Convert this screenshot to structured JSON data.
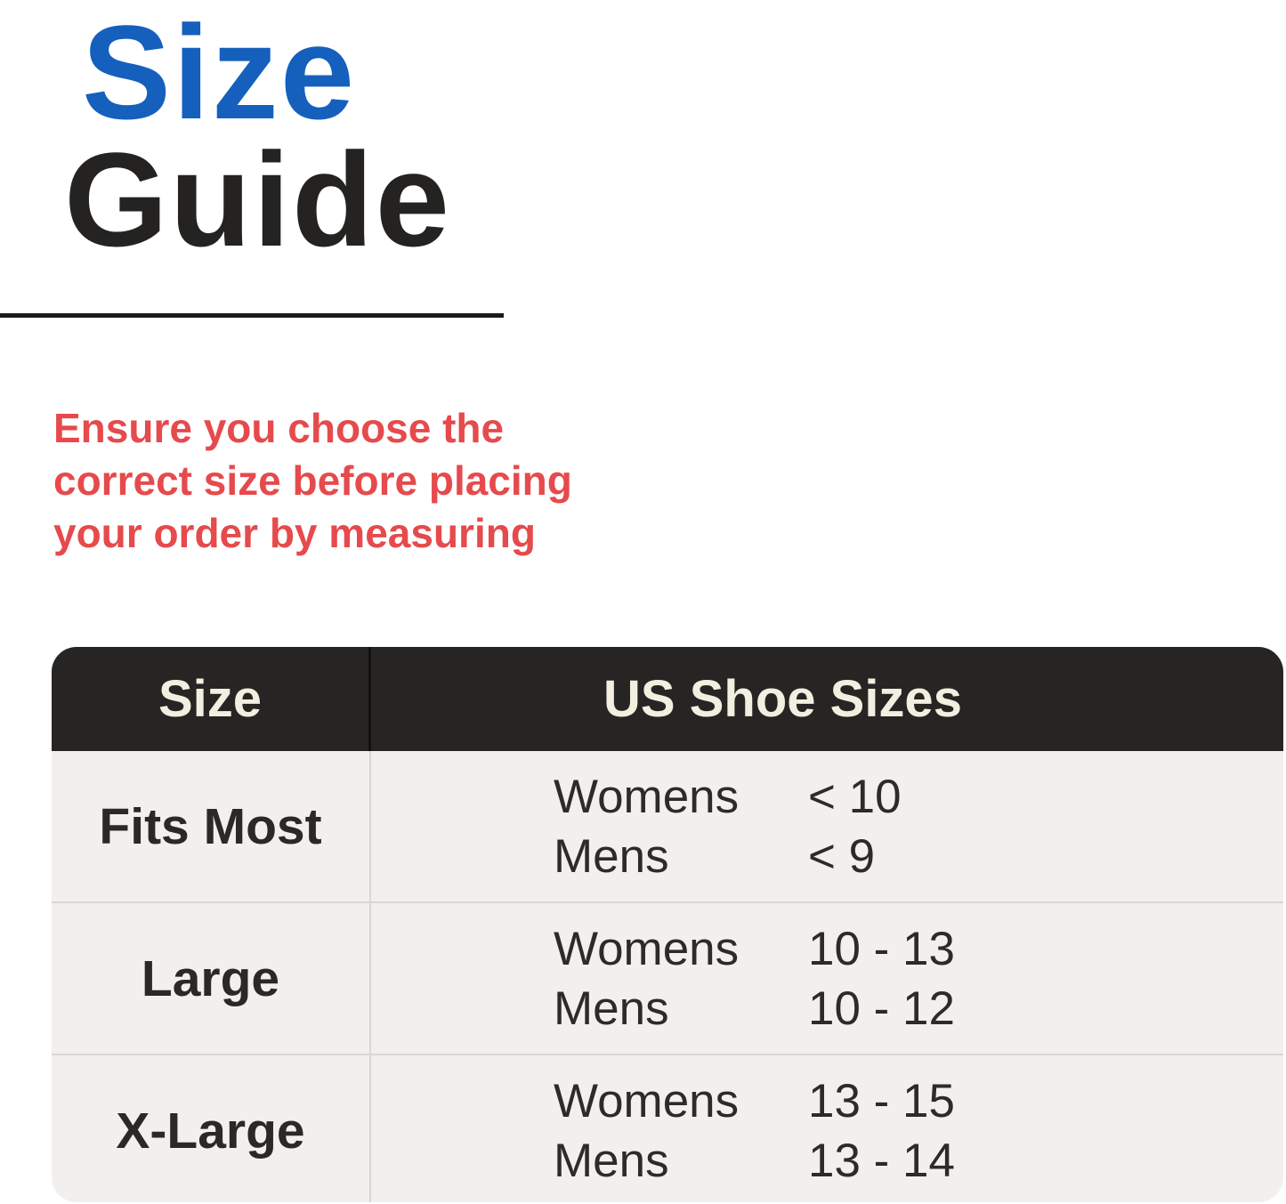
{
  "title": {
    "line1": "Size",
    "line2": "Guide"
  },
  "notice": {
    "lines": [
      "Ensure you choose the",
      "correct size before placing",
      "your order by measuring"
    ]
  },
  "table": {
    "header": {
      "col1": "Size",
      "col2": "US Shoe Sizes"
    },
    "rows": [
      {
        "size": "Fits Most",
        "entries": [
          {
            "label": "Womens",
            "value": "< 10"
          },
          {
            "label": "Mens",
            "value": "< 9"
          }
        ]
      },
      {
        "size": "Large",
        "entries": [
          {
            "label": "Womens",
            "value": "10 - 13"
          },
          {
            "label": "Mens",
            "value": "10 - 12"
          }
        ]
      },
      {
        "size": "X-Large",
        "entries": [
          {
            "label": "Womens",
            "value": "13 - 15"
          },
          {
            "label": "Mens",
            "value": "13 - 14"
          }
        ]
      }
    ]
  },
  "colors": {
    "title_blue": "#1560BD",
    "title_black": "#242321",
    "notice_red": "#E64A4C",
    "header_bg": "#272424",
    "header_text": "#F3EFE0",
    "row_bg": "#F1F0EE",
    "body_text": "#2D2B29",
    "divider": "#D8D7D5"
  }
}
